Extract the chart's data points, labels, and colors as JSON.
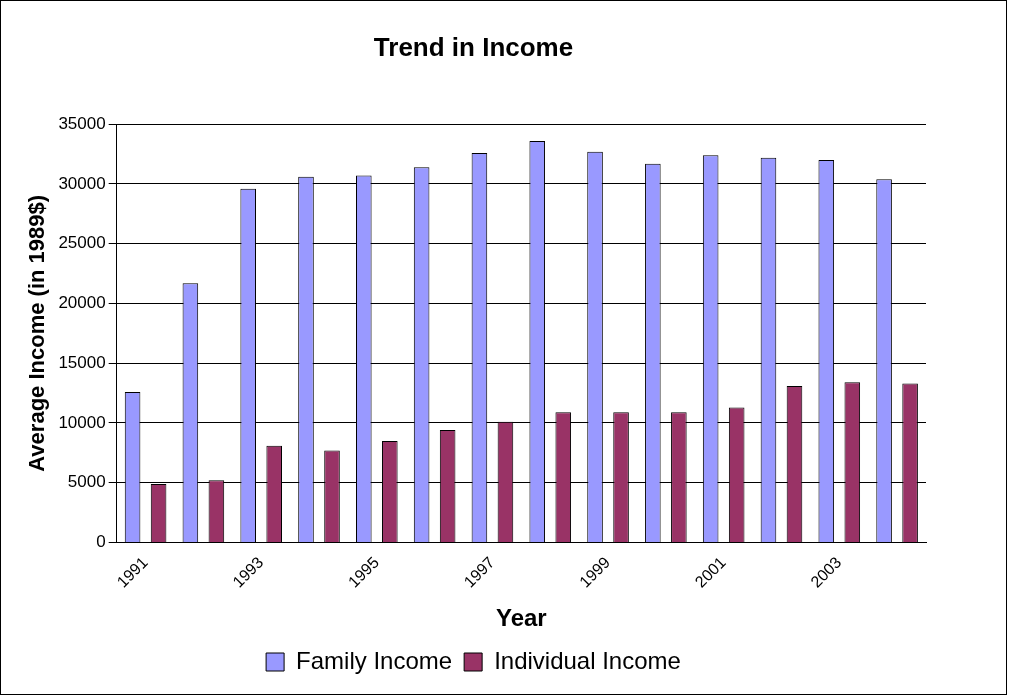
{
  "chart_data": {
    "type": "bar",
    "title": "Trend in Income",
    "xlabel": "Year",
    "ylabel": "Average Income (in 1989$)",
    "categories": [
      "1991",
      null,
      "1993",
      null,
      "1995",
      null,
      "1997",
      null,
      "1999",
      null,
      "2001",
      null,
      "2003",
      null
    ],
    "series": [
      {
        "name": "Family Income",
        "color": "#9999ff",
        "values": [
          12600,
          21700,
          29600,
          30600,
          30700,
          31400,
          32600,
          33600,
          32700,
          31700,
          32400,
          32200,
          32000,
          30400
        ]
      },
      {
        "name": "Individual Income",
        "color": "#993366",
        "values": [
          4900,
          5200,
          8100,
          7700,
          8500,
          9400,
          10100,
          10900,
          10900,
          10900,
          11300,
          13100,
          13400,
          13300
        ]
      }
    ],
    "ylim": [
      0,
      35000
    ],
    "yticks": [
      0,
      5000,
      10000,
      15000,
      20000,
      25000,
      30000,
      35000
    ],
    "grid": "y",
    "legend": "bottom"
  }
}
